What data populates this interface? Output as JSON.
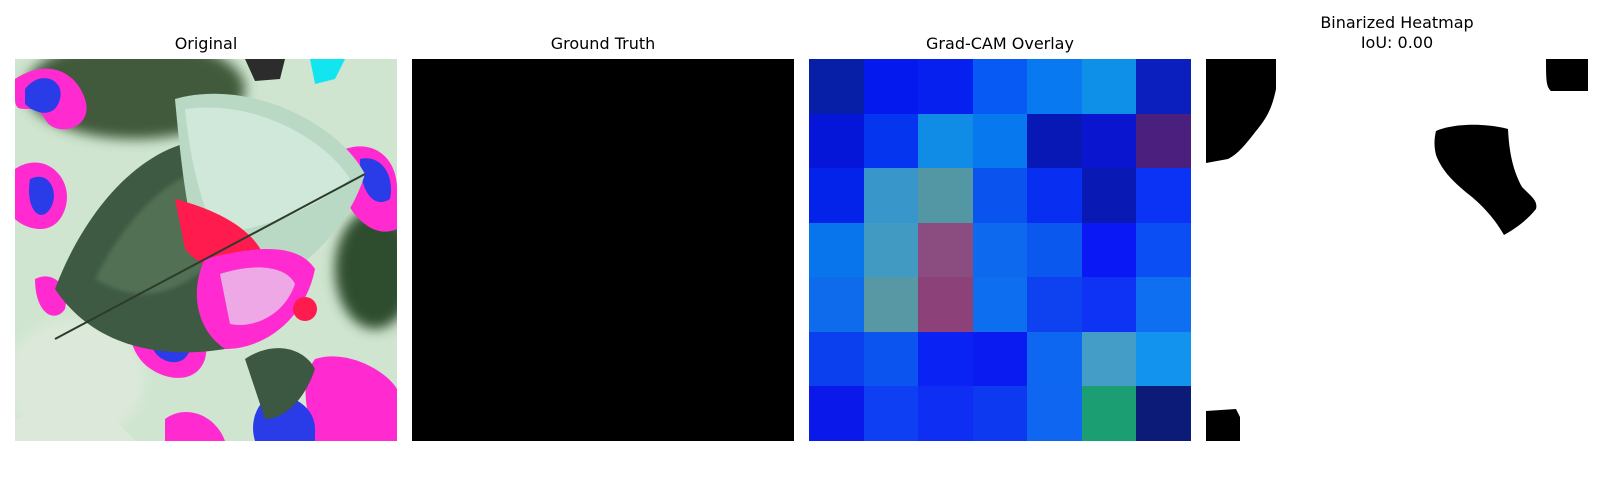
{
  "panels": {
    "original": {
      "title": "Original"
    },
    "ground_truth": {
      "title": "Ground Truth"
    },
    "gradcam": {
      "title": "Grad-CAM Overlay",
      "grid_colors": [
        [
          "#071ea6",
          "#0419ee",
          "#0620f0",
          "#075bf4",
          "#0879f0",
          "#0e8fe8",
          "#0a1fbd"
        ],
        [
          "#0616d8",
          "#0535ef",
          "#108be6",
          "#0878ef",
          "#0818b4",
          "#0a15d0",
          "#4a1f7e"
        ],
        [
          "#0423ea",
          "#3996ca",
          "#5497a4",
          "#0b53ef",
          "#072ef1",
          "#0819b4",
          "#0a33f5"
        ],
        [
          "#0875ec",
          "#419ac2",
          "#8b4c7f",
          "#0d6aef",
          "#0b58ef",
          "#0a18f5",
          "#0a4ef4"
        ],
        [
          "#0e6cec",
          "#5898a4",
          "#8c4179",
          "#0d6ff0",
          "#0e42f0",
          "#0e33f5",
          "#0e6ff0"
        ],
        [
          "#0a40ee",
          "#0c54ef",
          "#0a22f3",
          "#0a1bf2",
          "#0d67f0",
          "#449dc6",
          "#1193ee"
        ],
        [
          "#0a19ea",
          "#0e3ff2",
          "#0e2ef4",
          "#0d3af1",
          "#0f66f0",
          "#1a9e72",
          "#0c1b78"
        ]
      ]
    },
    "binarized": {
      "title": "Binarized Heatmap\nIoU: 0.00"
    }
  }
}
